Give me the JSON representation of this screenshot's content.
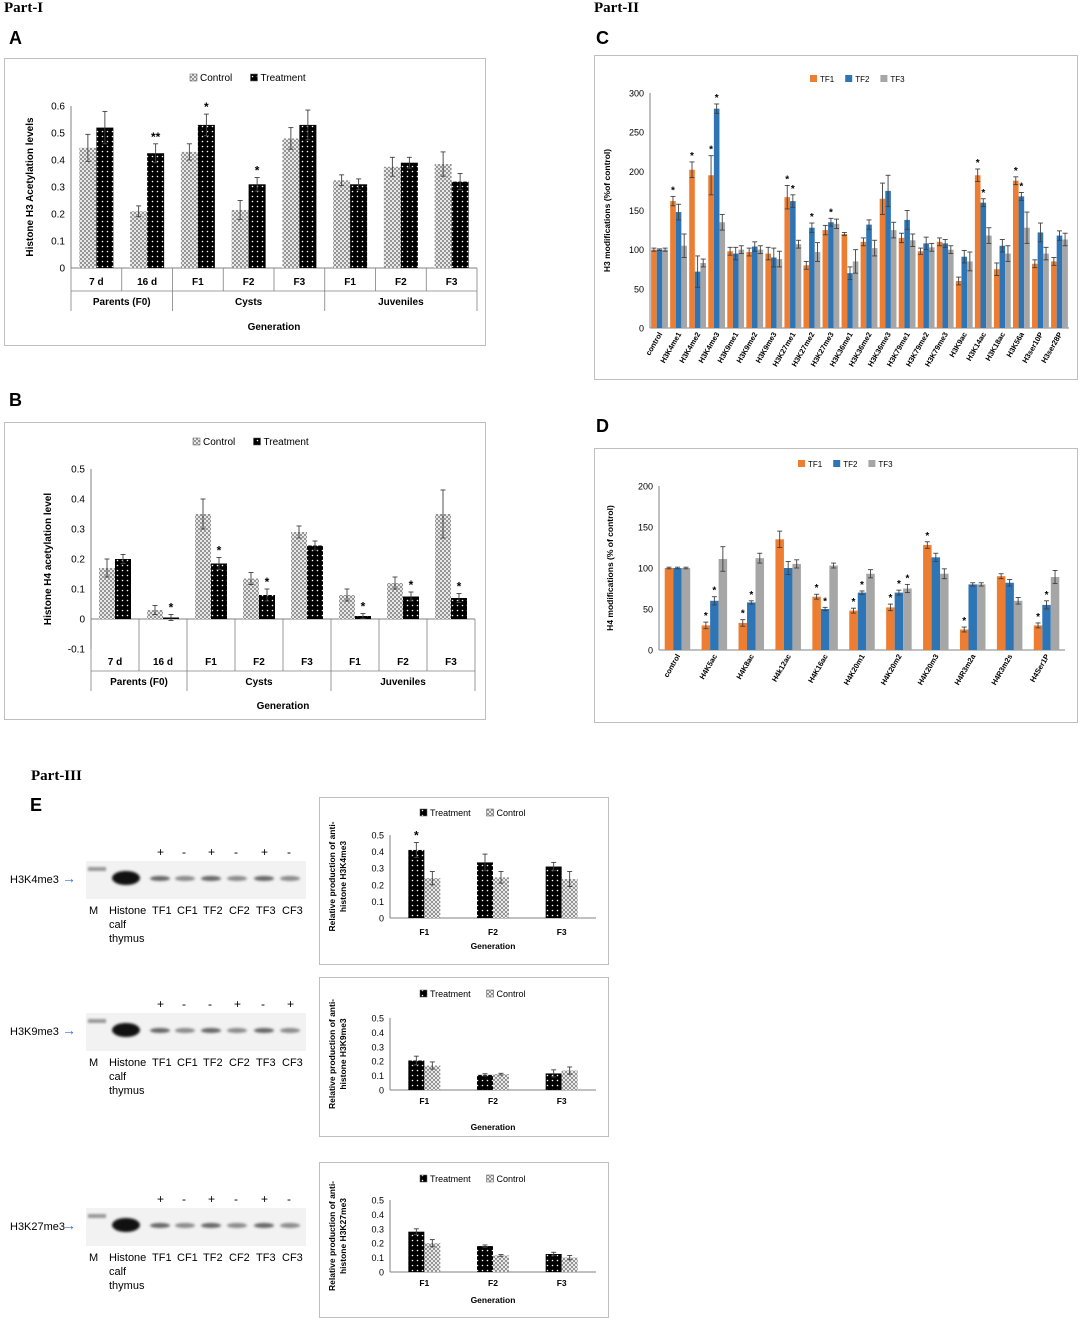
{
  "labels": {
    "part1": "Part-I",
    "part2": "Part-II",
    "part3": "Part-III",
    "A": "A",
    "B": "B",
    "C": "C",
    "D": "D",
    "E": "E"
  },
  "colors": {
    "tf1": "#ED7D31",
    "tf2": "#2E75B6",
    "tf3": "#A6A6A6",
    "control_fill": "#d9d9d9",
    "treatment_fill": "#000000",
    "frame": "#bfbfbf"
  },
  "blots": [
    {
      "label": "H3K4me3",
      "signs": [
        "+",
        "-",
        "+",
        "-",
        "+",
        "-"
      ],
      "lanes": [
        "M",
        "Histone",
        "TF1",
        "CF1",
        "TF2",
        "CF2",
        "TF3",
        "CF3"
      ],
      "sublines": [
        "calf",
        "thymus"
      ]
    },
    {
      "label": "H3K9me3",
      "signs": [
        "+",
        "-",
        "-",
        "+",
        "-",
        "+"
      ],
      "lanes": [
        "M",
        "Histone",
        "TF1",
        "CF1",
        "TF2",
        "CF2",
        "TF3",
        "CF3"
      ],
      "sublines": [
        "calf",
        "thymus"
      ]
    },
    {
      "label": "H3K27me3",
      "signs": [
        "+",
        "-",
        "+",
        "-",
        "+",
        "-"
      ],
      "lanes": [
        "M",
        "Histone",
        "TF1",
        "CF1",
        "TF2",
        "CF2",
        "TF3",
        "CF3"
      ],
      "sublines": [
        "calf",
        "thymus"
      ]
    }
  ],
  "chart_data": [
    {
      "id": "A",
      "type": "bar",
      "ylabel": "Histone H3 Acetylation levels",
      "xlabel": "Generation",
      "ylim": [
        0,
        0.6
      ],
      "yticks": [
        "0",
        "0.1",
        "0.2",
        "0.3",
        "0.4",
        "0.5",
        "0.6"
      ],
      "categories": [
        "7 d",
        "16 d",
        "F1",
        "F2",
        "F3",
        "F1",
        "F2",
        "F3"
      ],
      "groups": [
        {
          "label": "Parents (F0)",
          "span": 2
        },
        {
          "label": "Cysts",
          "span": 3
        },
        {
          "label": "Juveniles",
          "span": 3
        }
      ],
      "series": [
        {
          "name": "Control",
          "values": [
            0.445,
            0.21,
            0.43,
            0.215,
            0.48,
            0.325,
            0.375,
            0.385
          ],
          "errors": [
            0.05,
            0.02,
            0.03,
            0.035,
            0.04,
            0.02,
            0.035,
            0.045
          ]
        },
        {
          "name": "Treatment",
          "values": [
            0.52,
            0.425,
            0.53,
            0.31,
            0.53,
            0.31,
            0.39,
            0.32
          ],
          "errors": [
            0.06,
            0.035,
            0.04,
            0.025,
            0.055,
            0.02,
            0.02,
            0.03
          ]
        }
      ],
      "significance": [
        {
          "series": 1,
          "index": 1,
          "mark": "**"
        },
        {
          "series": 1,
          "index": 2,
          "mark": "*"
        },
        {
          "series": 1,
          "index": 3,
          "mark": "*"
        }
      ]
    },
    {
      "id": "B",
      "type": "bar",
      "ylabel": "Histone H4 acetylation level",
      "xlabel": "Generation",
      "ylim": [
        -0.1,
        0.5
      ],
      "yticks": [
        "-0.1",
        "0",
        "0.1",
        "0.2",
        "0.3",
        "0.4",
        "0.5"
      ],
      "categories": [
        "7 d",
        "16 d",
        "F1",
        "F2",
        "F3",
        "F1",
        "F2",
        "F3"
      ],
      "groups": [
        {
          "label": "Parents (F0)",
          "span": 2
        },
        {
          "label": "Cysts",
          "span": 3
        },
        {
          "label": "Juveniles",
          "span": 3
        }
      ],
      "series": [
        {
          "name": "Control",
          "values": [
            0.17,
            0.03,
            0.35,
            0.135,
            0.29,
            0.08,
            0.12,
            0.35
          ],
          "errors": [
            0.03,
            0.015,
            0.05,
            0.02,
            0.02,
            0.02,
            0.02,
            0.08
          ]
        },
        {
          "name": "Treatment",
          "values": [
            0.2,
            0.005,
            0.185,
            0.08,
            0.245,
            0.01,
            0.075,
            0.07
          ],
          "errors": [
            0.015,
            0.01,
            0.02,
            0.02,
            0.015,
            0.008,
            0.015,
            0.015
          ]
        }
      ],
      "significance": [
        {
          "series": 1,
          "index": 1,
          "mark": "*"
        },
        {
          "series": 1,
          "index": 2,
          "mark": "*"
        },
        {
          "series": 1,
          "index": 3,
          "mark": "*"
        },
        {
          "series": 1,
          "index": 5,
          "mark": "*"
        },
        {
          "series": 1,
          "index": 6,
          "mark": "*"
        },
        {
          "series": 1,
          "index": 7,
          "mark": "*"
        }
      ]
    },
    {
      "id": "C",
      "type": "bar",
      "ylabel": "H3 modifications (%of control)",
      "ylim": [
        0,
        300
      ],
      "yticks": [
        "0",
        "50",
        "100",
        "150",
        "200",
        "250",
        "300"
      ],
      "categories": [
        "control",
        "H3K4me1",
        "H3K4me2",
        "H3K4me3",
        "H3K9me1",
        "H3K9me2",
        "H3K9me3",
        "H3K27me1",
        "H3K27me2",
        "H3K27me3",
        "H3K36me1",
        "H3K36me2",
        "H3K36me3",
        "H3K79me1",
        "H3K79me2",
        "H3K79me3",
        "H3K9ac",
        "H3K14ac",
        "H3K18ac",
        "H3K56a",
        "H3ser10P",
        "H3ser28P"
      ],
      "series": [
        {
          "name": "TF1",
          "values": [
            100,
            162,
            202,
            195,
            98,
            97,
            95,
            167,
            80,
            125,
            120,
            110,
            165,
            115,
            98,
            110,
            60,
            195,
            75,
            188,
            82,
            85
          ],
          "errors": [
            2,
            6,
            10,
            25,
            5,
            5,
            8,
            15,
            5,
            6,
            2,
            5,
            20,
            6,
            4,
            5,
            5,
            8,
            8,
            5,
            5,
            5
          ]
        },
        {
          "name": "TF2",
          "values": [
            100,
            148,
            72,
            280,
            95,
            104,
            90,
            162,
            128,
            135,
            70,
            132,
            175,
            138,
            108,
            108,
            91,
            160,
            105,
            168,
            122,
            118
          ],
          "errors": [
            1,
            10,
            20,
            6,
            8,
            6,
            12,
            8,
            6,
            5,
            8,
            6,
            20,
            12,
            8,
            5,
            8,
            5,
            8,
            5,
            12,
            6
          ]
        },
        {
          "name": "TF3",
          "values": [
            100,
            105,
            83,
            135,
            100,
            100,
            88,
            107,
            97,
            133,
            85,
            102,
            125,
            112,
            103,
            100,
            85,
            118,
            95,
            128,
            95,
            113
          ],
          "errors": [
            2,
            15,
            5,
            10,
            5,
            5,
            10,
            5,
            12,
            6,
            15,
            10,
            10,
            8,
            5,
            5,
            12,
            10,
            10,
            20,
            8,
            8
          ]
        }
      ],
      "significance": [
        {
          "series": 0,
          "index": 1,
          "mark": "*"
        },
        {
          "series": 0,
          "index": 2,
          "mark": "*"
        },
        {
          "series": 0,
          "index": 3,
          "mark": "*"
        },
        {
          "series": 1,
          "index": 3,
          "mark": "*"
        },
        {
          "series": 0,
          "index": 7,
          "mark": "*"
        },
        {
          "series": 1,
          "index": 7,
          "mark": "*"
        },
        {
          "series": 1,
          "index": 8,
          "mark": "*"
        },
        {
          "series": 1,
          "index": 9,
          "mark": "*"
        },
        {
          "series": 0,
          "index": 17,
          "mark": "*"
        },
        {
          "series": 1,
          "index": 17,
          "mark": "*"
        },
        {
          "series": 0,
          "index": 19,
          "mark": "*"
        },
        {
          "series": 1,
          "index": 19,
          "mark": "*"
        }
      ]
    },
    {
      "id": "D",
      "type": "bar",
      "ylabel": "H4 modifications (% of control)",
      "ylim": [
        0,
        200
      ],
      "yticks": [
        "0",
        "50",
        "100",
        "150",
        "200"
      ],
      "categories": [
        "control",
        "H4K5ac",
        "H4K8ac",
        "H4k12ac",
        "H4K16ac",
        "H4K20m1",
        "H4K20m2",
        "H4K20m3",
        "H4R3m2a",
        "H4R3m2s",
        "H4Ser1P"
      ],
      "series": [
        {
          "name": "TF1",
          "values": [
            100,
            30,
            33,
            135,
            65,
            48,
            52,
            128,
            25,
            90,
            30
          ],
          "errors": [
            1,
            4,
            4,
            10,
            3,
            3,
            4,
            4,
            3,
            3,
            3
          ]
        },
        {
          "name": "TF2",
          "values": [
            100,
            60,
            58,
            100,
            50,
            70,
            70,
            113,
            80,
            82,
            55
          ],
          "errors": [
            1,
            5,
            2,
            8,
            2,
            2,
            3,
            5,
            2,
            4,
            5
          ]
        },
        {
          "name": "TF3",
          "values": [
            100,
            111,
            112,
            105,
            103,
            93,
            75,
            93,
            80,
            60,
            89
          ],
          "errors": [
            1,
            15,
            6,
            5,
            3,
            5,
            5,
            6,
            2,
            4,
            8
          ]
        }
      ],
      "significance": [
        {
          "series": 0,
          "index": 1,
          "mark": "*"
        },
        {
          "series": 1,
          "index": 1,
          "mark": "*"
        },
        {
          "series": 0,
          "index": 2,
          "mark": "*"
        },
        {
          "series": 1,
          "index": 2,
          "mark": "*"
        },
        {
          "series": 0,
          "index": 4,
          "mark": "*"
        },
        {
          "series": 1,
          "index": 4,
          "mark": "*"
        },
        {
          "series": 0,
          "index": 5,
          "mark": "*"
        },
        {
          "series": 1,
          "index": 5,
          "mark": "*"
        },
        {
          "series": 0,
          "index": 6,
          "mark": "*"
        },
        {
          "series": 1,
          "index": 6,
          "mark": "*"
        },
        {
          "series": 2,
          "index": 6,
          "mark": "*"
        },
        {
          "series": 0,
          "index": 7,
          "mark": "*"
        },
        {
          "series": 0,
          "index": 8,
          "mark": "*"
        },
        {
          "series": 0,
          "index": 10,
          "mark": "*"
        },
        {
          "series": 1,
          "index": 10,
          "mark": "*"
        }
      ]
    },
    {
      "id": "E1",
      "type": "bar",
      "ylabel": "Relative production of anti-histone H3K4me3",
      "xlabel": "Generation",
      "ylim": [
        0,
        0.5
      ],
      "yticks": [
        "0",
        "0.1",
        "0.2",
        "0.3",
        "0.4",
        "0.5"
      ],
      "categories": [
        "F1",
        "F2",
        "F3"
      ],
      "series": [
        {
          "name": "Treatment",
          "values": [
            0.41,
            0.335,
            0.31
          ],
          "errors": [
            0.045,
            0.05,
            0.025
          ]
        },
        {
          "name": "Control",
          "values": [
            0.24,
            0.245,
            0.235
          ],
          "errors": [
            0.04,
            0.035,
            0.045
          ]
        }
      ],
      "significance": [
        {
          "series": 0,
          "index": 0,
          "mark": "*"
        }
      ]
    },
    {
      "id": "E2",
      "type": "bar",
      "ylabel": "Relative production of anti-histone H3K9me3",
      "xlabel": "Generation",
      "ylim": [
        0,
        0.5
      ],
      "yticks": [
        "0",
        "0.1",
        "0.2",
        "0.3",
        "0.4",
        "0.5"
      ],
      "categories": [
        "F1",
        "F2",
        "F3"
      ],
      "series": [
        {
          "name": "Treatment",
          "values": [
            0.205,
            0.105,
            0.115
          ],
          "errors": [
            0.03,
            0.008,
            0.025
          ]
        },
        {
          "name": "Control",
          "values": [
            0.17,
            0.11,
            0.135
          ],
          "errors": [
            0.025,
            0.006,
            0.025
          ]
        }
      ],
      "significance": []
    },
    {
      "id": "E3",
      "type": "bar",
      "ylabel": "Relative production of anti-histone H3K27me3",
      "xlabel": "Generation",
      "ylim": [
        0,
        0.5
      ],
      "yticks": [
        "0",
        "0.1",
        "0.2",
        "0.3",
        "0.4",
        "0.5"
      ],
      "categories": [
        "F1",
        "F2",
        "F3"
      ],
      "series": [
        {
          "name": "Treatment",
          "values": [
            0.28,
            0.18,
            0.125
          ],
          "errors": [
            0.02,
            0.008,
            0.012
          ]
        },
        {
          "name": "Control",
          "values": [
            0.2,
            0.115,
            0.1
          ],
          "errors": [
            0.025,
            0.006,
            0.015
          ]
        }
      ],
      "significance": []
    }
  ]
}
